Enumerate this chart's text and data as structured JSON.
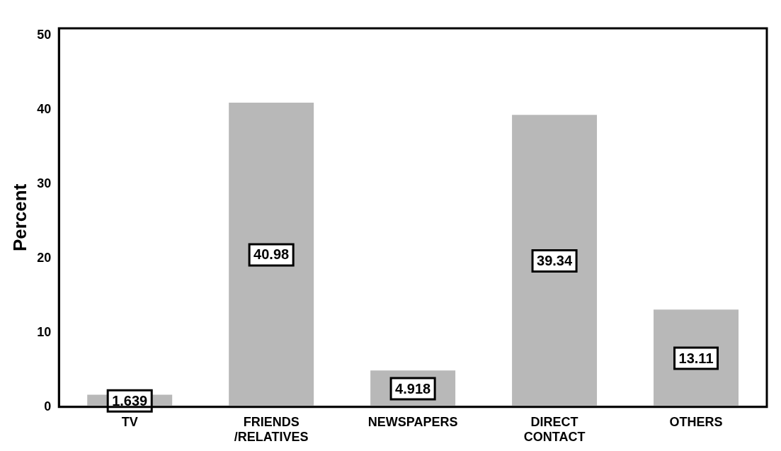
{
  "chart_data": {
    "type": "bar",
    "ylabel": "Percent",
    "categories": [
      "TV",
      "FRIENDS /RELATIVES",
      "NEWSPAPERS",
      "DIRECT CONTACT",
      "OTHERS"
    ],
    "values": [
      1.639,
      40.98,
      4.918,
      39.34,
      13.11
    ],
    "color": "#b8b8b8",
    "ylim": [
      0,
      51
    ],
    "yticks": [
      0,
      10,
      20,
      30,
      40,
      50
    ],
    "grid": false,
    "legend": false,
    "data_labels": true
  }
}
